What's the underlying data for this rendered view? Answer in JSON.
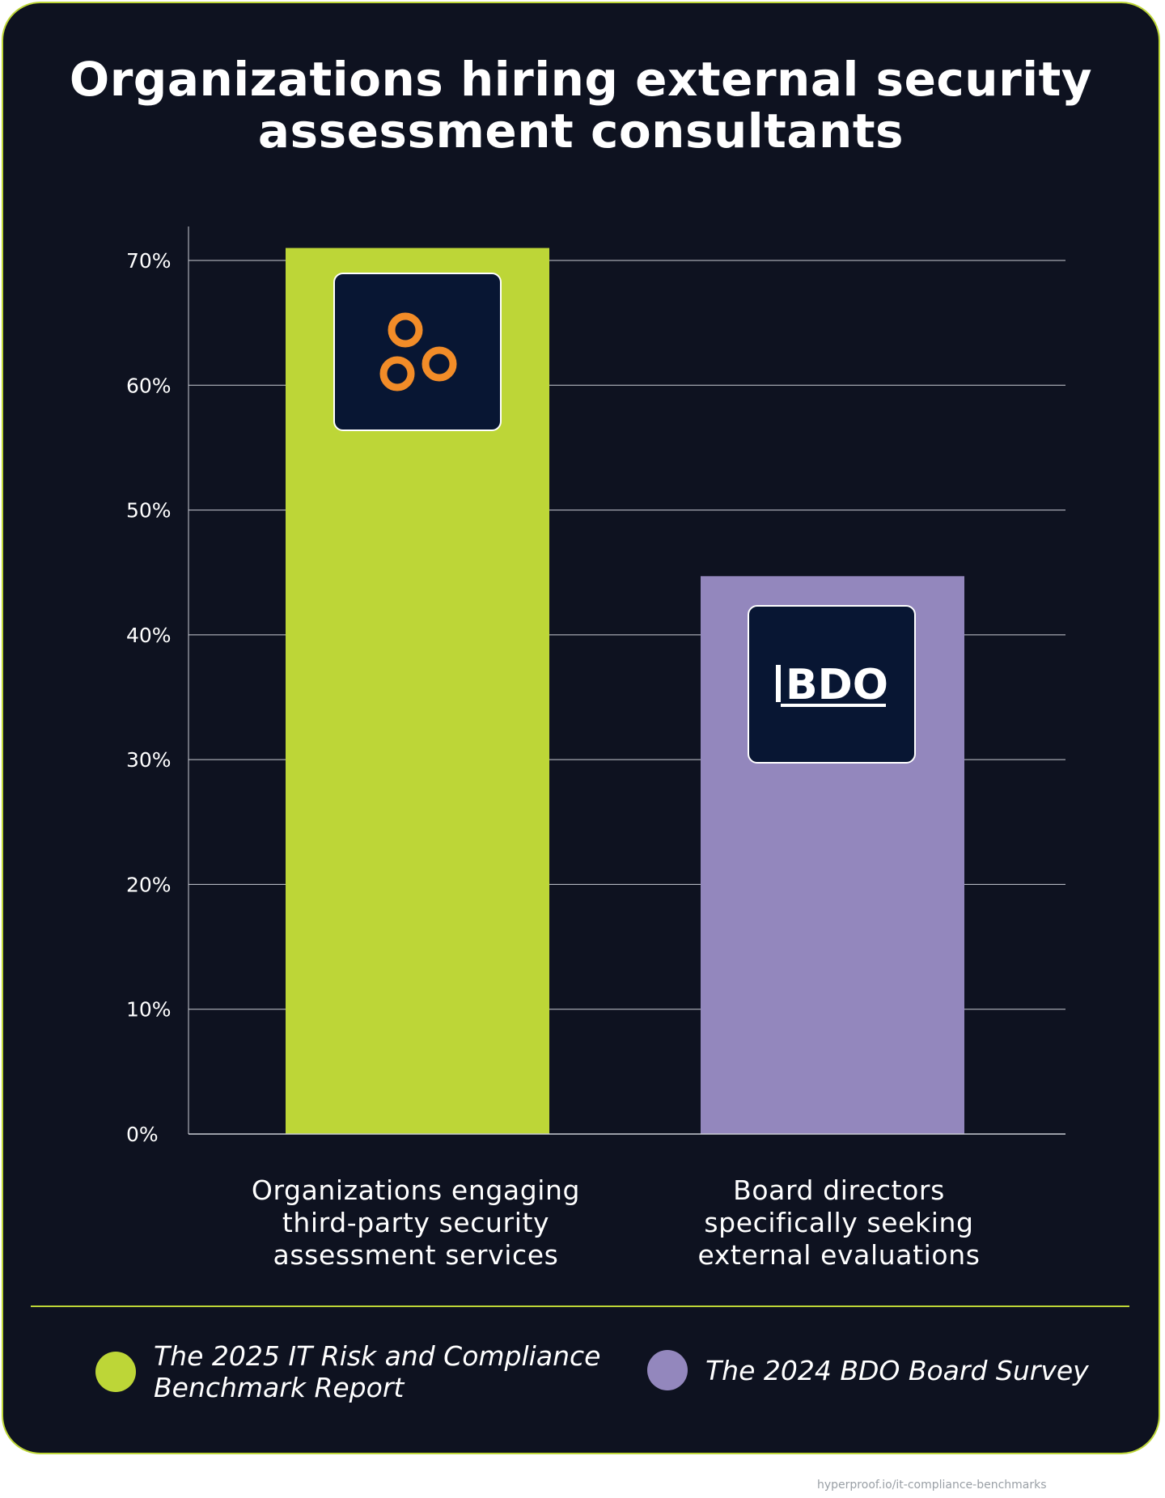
{
  "chart_data": {
    "type": "bar",
    "title": "Organizations hiring external security assessment consultants",
    "categories": [
      "Organizations engaging third-party security assessment services",
      "Board directors specifically seeking external evaluations"
    ],
    "values": [
      71,
      44.7
    ],
    "colors": [
      "#bdd637",
      "#9387bd"
    ],
    "ylim": [
      0,
      70
    ],
    "yticks": [
      0,
      10,
      20,
      30,
      40,
      50,
      60,
      70
    ],
    "ytick_labels": [
      "0%",
      "10%",
      "20%",
      "30%",
      "40%",
      "50%",
      "60%",
      "70%"
    ],
    "grid": true,
    "legend": [
      {
        "label": "The 2025 IT Risk and Compliance Benchmark Report",
        "color": "#bdd637"
      },
      {
        "label": "The 2024 BDO Board Survey",
        "color": "#9387bd"
      }
    ],
    "legend_position": "bottom"
  },
  "category_label_lines": [
    [
      "Organizations engaging",
      "third-party security",
      "assessment services"
    ],
    [
      "Board directors",
      "specifically seeking",
      "external evaluations"
    ]
  ],
  "legend_lines": [
    [
      "The 2025 IT Risk and Compliance",
      "Benchmark Report"
    ],
    [
      "The 2024 BDO Board Survey"
    ]
  ],
  "logos": {
    "first": {
      "icon": "orange-rings-logo-icon",
      "color": "#f28c28"
    },
    "second": {
      "text": "BDO",
      "icon": "bdo-logo-icon",
      "color": "#ffffff"
    }
  },
  "footer_url": "hyperproof.io/it-compliance-benchmarks"
}
